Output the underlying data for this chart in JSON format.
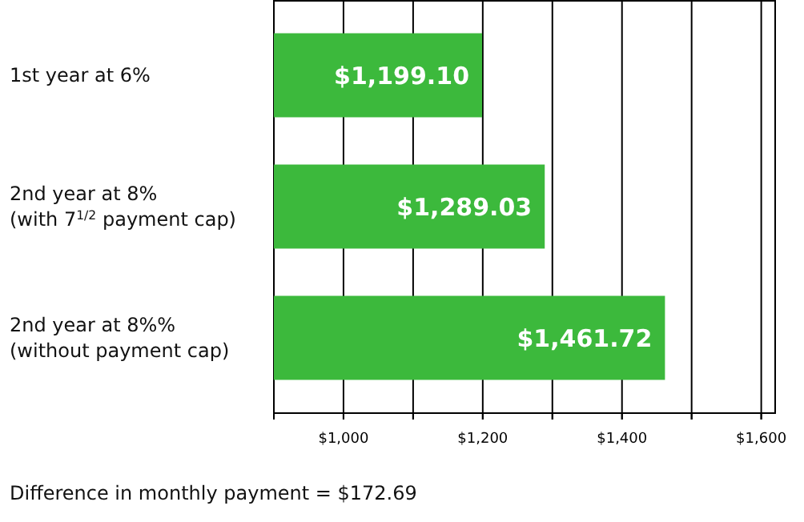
{
  "chart_data": {
    "type": "bar",
    "orientation": "horizontal",
    "categories": [
      "1st year at 6%",
      "2nd year at 8%\n(with 7$^{1/2}$ payment cap)",
      "2nd year at 8%%\n(without payment cap)"
    ],
    "values": [
      1199.1,
      1289.03,
      1461.72
    ],
    "value_labels": [
      "$1,199.10",
      "$1,289.03",
      "$1,461.72"
    ],
    "color": "#3cb93c",
    "xlim": [
      900,
      1620
    ],
    "xticks": [
      {
        "value": 900,
        "label": null
      },
      {
        "value": 1000,
        "label": "$1,000"
      },
      {
        "value": 1100,
        "label": null
      },
      {
        "value": 1200,
        "label": "$1,200"
      },
      {
        "value": 1300,
        "label": null
      },
      {
        "value": 1400,
        "label": "$1,400"
      },
      {
        "value": 1500,
        "label": null
      },
      {
        "value": 1600,
        "label": "$1,600"
      }
    ],
    "grid": "x",
    "annotations": [
      "Difference in monthly payment = $172.69"
    ]
  }
}
